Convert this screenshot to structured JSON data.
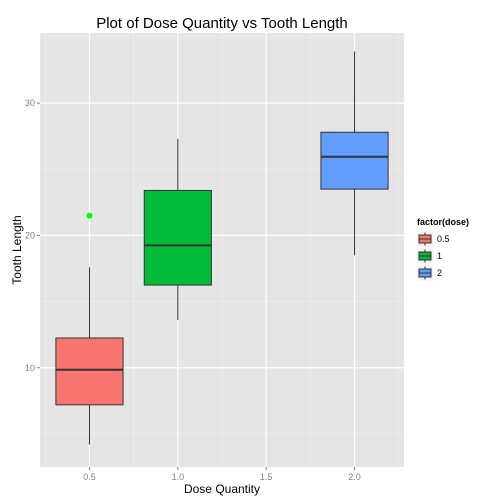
{
  "chart_data": {
    "type": "boxplot",
    "title": "Plot of Dose Quantity vs Tooth Length",
    "xlabel": "Dose Quantity",
    "ylabel": "Tooth Length",
    "xlim": [
      0.22,
      2.28
    ],
    "ylim": [
      2.5,
      35.3
    ],
    "x_ticks": [
      0.5,
      1.0,
      1.5,
      2.0
    ],
    "x_tick_labels": [
      "0.5",
      "1.0",
      "1.5",
      "2.0"
    ],
    "y_ticks": [
      10,
      20,
      30
    ],
    "y_tick_labels": [
      "10",
      "20",
      "30"
    ],
    "grid": true,
    "background": "#e5e5e5",
    "legend": {
      "title": "factor(dose)",
      "placement": "right",
      "entries": [
        "0.5",
        "1",
        "2"
      ]
    },
    "box_width": 0.38,
    "series": [
      {
        "name": "0.5",
        "x": 0.5,
        "color": "#f8766d",
        "min": 4.2,
        "q1": 7.2,
        "median": 9.85,
        "q3": 12.25,
        "max": 17.6,
        "outliers": [
          21.5
        ]
      },
      {
        "name": "1",
        "x": 1.0,
        "color": "#00ba38",
        "min": 13.6,
        "q1": 16.25,
        "median": 19.25,
        "q3": 23.4,
        "max": 27.3,
        "outliers": []
      },
      {
        "name": "2",
        "x": 2.0,
        "color": "#619cff",
        "min": 18.5,
        "q1": 23.5,
        "median": 25.95,
        "q3": 27.8,
        "max": 33.9,
        "outliers": []
      }
    ],
    "outlier_color": "#00ff00"
  }
}
